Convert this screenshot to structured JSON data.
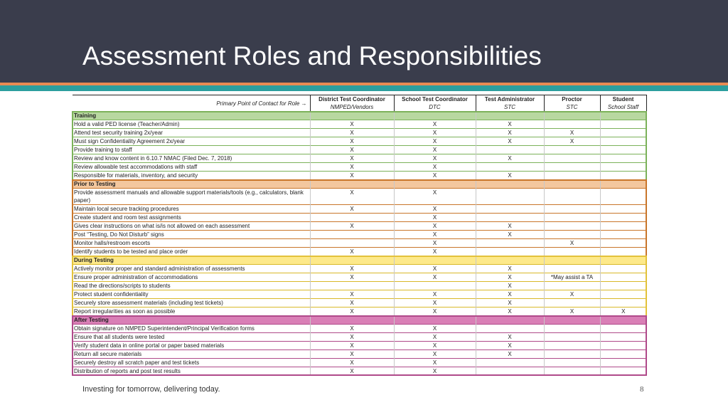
{
  "title": "Assessment Roles and Responsibilities",
  "poc_label": "Primary Point of Contact for Role →",
  "roles": [
    {
      "name": "District Test Coordinator",
      "contact": "NMPED/Vendors"
    },
    {
      "name": "School Test Coordinator",
      "contact": "DTC"
    },
    {
      "name": "Test Administrator",
      "contact": "STC"
    },
    {
      "name": "Proctor",
      "contact": "STC"
    },
    {
      "name": "Student",
      "contact": "School Staff"
    }
  ],
  "sections": [
    {
      "name": "Training",
      "rows": [
        {
          "task": "Hold a valid PED license (Teacher/Admin)",
          "marks": [
            "X",
            "X",
            "X",
            "",
            ""
          ]
        },
        {
          "task": "Attend test security training 2x/year",
          "marks": [
            "X",
            "X",
            "X",
            "X",
            ""
          ]
        },
        {
          "task": "Must sign Confidentiality Agreement 2x/year",
          "marks": [
            "X",
            "X",
            "X",
            "X",
            ""
          ]
        },
        {
          "task": "Provide training to staff",
          "marks": [
            "X",
            "X",
            "",
            "",
            ""
          ]
        },
        {
          "task": "Review and know content in 6.10.7 NMAC (Filed Dec. 7, 2018)",
          "marks": [
            "X",
            "X",
            "X",
            "",
            ""
          ]
        },
        {
          "task": "Review allowable test accommodations with staff",
          "marks": [
            "X",
            "X",
            "",
            "",
            ""
          ]
        },
        {
          "task": "Responsible for materials, inventory, and security",
          "marks": [
            "X",
            "X",
            "X",
            "",
            ""
          ]
        }
      ]
    },
    {
      "name": "Prior to Testing",
      "rows": [
        {
          "task": "Provide assessment manuals and allowable support materials/tools (e.g., calculators, blank paper)",
          "marks": [
            "X",
            "X",
            "",
            "",
            ""
          ]
        },
        {
          "task": "Maintain local secure tracking procedures",
          "marks": [
            "X",
            "X",
            "",
            "",
            ""
          ]
        },
        {
          "task": "Create student and room test assignments",
          "marks": [
            "",
            "X",
            "",
            "",
            ""
          ]
        },
        {
          "task": "Gives clear instructions on what is/is not allowed on each assessment",
          "marks": [
            "X",
            "X",
            "X",
            "",
            ""
          ]
        },
        {
          "task": "Post “Testing, Do Not Disturb” signs",
          "marks": [
            "",
            "X",
            "X",
            "",
            ""
          ]
        },
        {
          "task": "Monitor halls/restroom escorts",
          "marks": [
            "",
            "X",
            "",
            "X",
            ""
          ]
        },
        {
          "task": "Identify students to be tested and place order",
          "marks": [
            "X",
            "X",
            "",
            "",
            ""
          ]
        }
      ]
    },
    {
      "name": "During Testing",
      "rows": [
        {
          "task": "Actively monitor proper and standard administration of assessments",
          "marks": [
            "X",
            "X",
            "X",
            "",
            ""
          ]
        },
        {
          "task": "Ensure proper administration of accommodations",
          "marks": [
            "X",
            "X",
            "X",
            "*May assist a TA",
            ""
          ]
        },
        {
          "task": "Read the directions/scripts to students",
          "marks": [
            "",
            "",
            "X",
            "",
            ""
          ]
        },
        {
          "task": "Protect student confidentiality",
          "marks": [
            "X",
            "X",
            "X",
            "X",
            ""
          ]
        },
        {
          "task": "Securely store assessment materials (including test tickets)",
          "marks": [
            "X",
            "X",
            "X",
            "",
            ""
          ]
        },
        {
          "task": "Report irregularities as soon as possible",
          "marks": [
            "X",
            "X",
            "X",
            "X",
            "X"
          ]
        }
      ]
    },
    {
      "name": "After Testing",
      "rows": [
        {
          "task": "Obtain signature on NMPED Superintendent/Principal Verification forms",
          "marks": [
            "X",
            "X",
            "",
            "",
            ""
          ]
        },
        {
          "task": "Ensure that all students were tested",
          "marks": [
            "X",
            "X",
            "X",
            "",
            ""
          ]
        },
        {
          "task": "Verify student data in online portal or paper based materials",
          "marks": [
            "X",
            "X",
            "X",
            "",
            ""
          ]
        },
        {
          "task": "Return all secure materials",
          "marks": [
            "X",
            "X",
            "X",
            "",
            ""
          ]
        },
        {
          "task": "Securely destroy all scratch paper and test tickets",
          "marks": [
            "X",
            "X",
            "",
            "",
            ""
          ]
        },
        {
          "task": "Distribution of reports and post test results",
          "marks": [
            "X",
            "X",
            "",
            "",
            ""
          ]
        }
      ]
    }
  ],
  "footer": "Investing for tomorrow, delivering today.",
  "page_number": "8",
  "colors": {
    "header_bg": "#3a3d4c",
    "stripe_orange": "#e88a52",
    "stripe_teal": "#2b9e9e",
    "training": "#b8d8a0",
    "prior": "#f3c79e",
    "during": "#fde98a",
    "after": "#d97fb6"
  }
}
